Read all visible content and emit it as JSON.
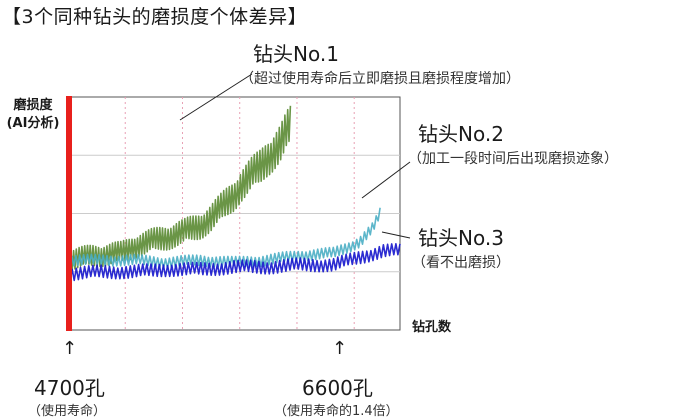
{
  "heading": "【3个同种钻头的磨损度个体差异】",
  "chart_data": {
    "type": "line",
    "ylabel_lines": [
      "磨损度",
      "(AI分析)"
    ],
    "xlabel": "钻孔数",
    "grid": true,
    "series": [
      {
        "name": "钻头No.1",
        "note": "（超过使用寿命后立即磨损且磨损程度增加）",
        "color": "#5a8a32",
        "x": [
          0,
          0.08,
          0.16,
          0.2,
          0.25,
          0.3,
          0.35,
          0.4,
          0.43,
          0.46,
          0.48,
          0.5,
          0.52,
          0.55,
          0.58,
          0.6,
          0.62,
          0.64,
          0.66,
          0.67
        ],
        "y": [
          0.3,
          0.32,
          0.33,
          0.36,
          0.38,
          0.4,
          0.42,
          0.45,
          0.48,
          0.52,
          0.55,
          0.58,
          0.62,
          0.66,
          0.7,
          0.74,
          0.77,
          0.8,
          0.85,
          0.87
        ]
      },
      {
        "name": "钻头No.2",
        "note": "（加工一段时间后出现磨损迹象）",
        "color": "#4aaec4",
        "x": [
          0,
          0.1,
          0.2,
          0.3,
          0.4,
          0.5,
          0.6,
          0.7,
          0.8,
          0.85,
          0.88,
          0.9,
          0.92,
          0.94
        ],
        "y": [
          0.3,
          0.3,
          0.3,
          0.29,
          0.3,
          0.29,
          0.3,
          0.32,
          0.33,
          0.36,
          0.38,
          0.41,
          0.44,
          0.5
        ]
      },
      {
        "name": "钻头No.3",
        "note": "（看不出磨损）",
        "color": "#1414cc",
        "x": [
          0,
          0.1,
          0.2,
          0.3,
          0.4,
          0.5,
          0.6,
          0.7,
          0.8,
          0.85,
          0.9,
          0.95,
          1.0
        ],
        "y": [
          0.24,
          0.25,
          0.25,
          0.26,
          0.26,
          0.27,
          0.27,
          0.28,
          0.28,
          0.3,
          0.32,
          0.34,
          0.34
        ]
      }
    ],
    "ylim": [
      0,
      1
    ],
    "xlim": [
      0,
      1
    ]
  },
  "markers": [
    {
      "label": "4700孔",
      "note": "（使用寿命）",
      "arrow": "↑"
    },
    {
      "label": "6600孔",
      "note": "（使用寿命的1.4倍）",
      "arrow": "↑"
    }
  ],
  "colors": {
    "life_line": "#e8201c",
    "grid": "#e8a0b4",
    "axis": "#555555"
  }
}
